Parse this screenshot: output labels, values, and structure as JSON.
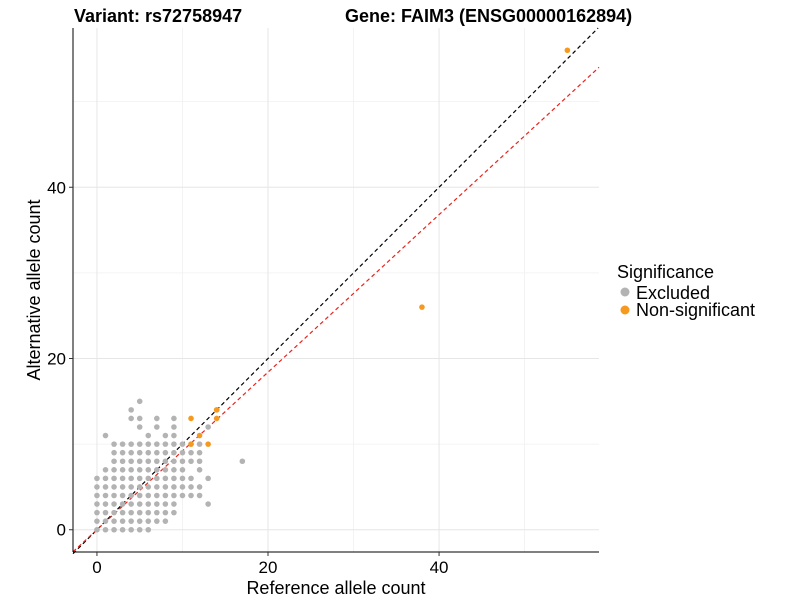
{
  "chart_data": {
    "type": "scatter",
    "title_left": "Variant: rs72758947",
    "title_right": "Gene: FAIM3 (ENSG00000162894)",
    "xlabel": "Reference allele count",
    "ylabel": "Alternative allele count",
    "xlim": [
      -2.8,
      58.7
    ],
    "ylim": [
      -2.6,
      58.6
    ],
    "x_ticks": [
      0,
      20,
      40
    ],
    "y_ticks": [
      0,
      20,
      40
    ],
    "grid": true,
    "legend": {
      "title": "Significance",
      "position": "right",
      "entries": [
        {
          "label": "Excluded",
          "color": "#B3B3B3"
        },
        {
          "label": "Non-significant",
          "color": "#F59A1E"
        }
      ]
    },
    "reference_lines": [
      {
        "slope": 1,
        "intercept": 0,
        "color": "#000000",
        "style": "dashed"
      },
      {
        "slope": 0.92,
        "intercept": 0,
        "color": "#E8231C",
        "style": "dashed"
      }
    ],
    "series": [
      {
        "name": "Excluded",
        "color": "#B3B3B3",
        "points": [
          [
            0,
            0
          ],
          [
            0,
            1
          ],
          [
            0,
            2
          ],
          [
            0,
            3
          ],
          [
            0,
            4
          ],
          [
            0,
            5
          ],
          [
            0,
            6
          ],
          [
            1,
            0
          ],
          [
            1,
            1
          ],
          [
            1,
            2
          ],
          [
            1,
            3
          ],
          [
            1,
            4
          ],
          [
            1,
            5
          ],
          [
            1,
            6
          ],
          [
            1,
            7
          ],
          [
            1,
            11
          ],
          [
            2,
            0
          ],
          [
            2,
            1
          ],
          [
            2,
            2
          ],
          [
            2,
            3
          ],
          [
            2,
            4
          ],
          [
            2,
            5
          ],
          [
            2,
            6
          ],
          [
            2,
            7
          ],
          [
            2,
            8
          ],
          [
            2,
            9
          ],
          [
            2,
            10
          ],
          [
            3,
            0
          ],
          [
            3,
            1
          ],
          [
            3,
            2
          ],
          [
            3,
            3
          ],
          [
            3,
            4
          ],
          [
            3,
            5
          ],
          [
            3,
            6
          ],
          [
            3,
            7
          ],
          [
            3,
            8
          ],
          [
            3,
            9
          ],
          [
            3,
            10
          ],
          [
            4,
            0
          ],
          [
            4,
            1
          ],
          [
            4,
            2
          ],
          [
            4,
            3
          ],
          [
            4,
            4
          ],
          [
            4,
            5
          ],
          [
            4,
            6
          ],
          [
            4,
            7
          ],
          [
            4,
            8
          ],
          [
            4,
            9
          ],
          [
            4,
            10
          ],
          [
            4,
            13
          ],
          [
            4,
            14
          ],
          [
            5,
            0
          ],
          [
            5,
            1
          ],
          [
            5,
            2
          ],
          [
            5,
            3
          ],
          [
            5,
            4
          ],
          [
            5,
            5
          ],
          [
            5,
            6
          ],
          [
            5,
            7
          ],
          [
            5,
            8
          ],
          [
            5,
            9
          ],
          [
            5,
            10
          ],
          [
            5,
            12
          ],
          [
            5,
            13
          ],
          [
            5,
            15
          ],
          [
            6,
            0
          ],
          [
            6,
            1
          ],
          [
            6,
            2
          ],
          [
            6,
            3
          ],
          [
            6,
            4
          ],
          [
            6,
            5
          ],
          [
            6,
            6
          ],
          [
            6,
            7
          ],
          [
            6,
            8
          ],
          [
            6,
            9
          ],
          [
            6,
            10
          ],
          [
            6,
            11
          ],
          [
            7,
            1
          ],
          [
            7,
            2
          ],
          [
            7,
            3
          ],
          [
            7,
            4
          ],
          [
            7,
            5
          ],
          [
            7,
            6
          ],
          [
            7,
            7
          ],
          [
            7,
            8
          ],
          [
            7,
            9
          ],
          [
            7,
            10
          ],
          [
            7,
            12
          ],
          [
            7,
            13
          ],
          [
            8,
            1
          ],
          [
            8,
            2
          ],
          [
            8,
            3
          ],
          [
            8,
            4
          ],
          [
            8,
            5
          ],
          [
            8,
            6
          ],
          [
            8,
            7
          ],
          [
            8,
            8
          ],
          [
            8,
            9
          ],
          [
            8,
            10
          ],
          [
            8,
            11
          ],
          [
            9,
            2
          ],
          [
            9,
            3
          ],
          [
            9,
            4
          ],
          [
            9,
            5
          ],
          [
            9,
            6
          ],
          [
            9,
            7
          ],
          [
            9,
            8
          ],
          [
            9,
            9
          ],
          [
            9,
            10
          ],
          [
            9,
            11
          ],
          [
            9,
            12
          ],
          [
            9,
            13
          ],
          [
            10,
            4
          ],
          [
            10,
            5
          ],
          [
            10,
            6
          ],
          [
            10,
            7
          ],
          [
            10,
            8
          ],
          [
            10,
            9
          ],
          [
            10,
            10
          ],
          [
            11,
            4
          ],
          [
            11,
            5
          ],
          [
            11,
            6
          ],
          [
            11,
            8
          ],
          [
            11,
            9
          ],
          [
            11,
            10
          ],
          [
            12,
            4
          ],
          [
            12,
            5
          ],
          [
            12,
            7
          ],
          [
            12,
            8
          ],
          [
            12,
            9
          ],
          [
            12,
            10
          ],
          [
            13,
            3
          ],
          [
            13,
            6
          ],
          [
            13,
            12
          ],
          [
            14,
            14
          ],
          [
            17,
            8
          ]
        ]
      },
      {
        "name": "Non-significant",
        "color": "#F59A1E",
        "points": [
          [
            11,
            13
          ],
          [
            11,
            10
          ],
          [
            12,
            11
          ],
          [
            13,
            10
          ],
          [
            14,
            14
          ],
          [
            14,
            13
          ],
          [
            38,
            26
          ],
          [
            55,
            56
          ]
        ]
      }
    ]
  }
}
